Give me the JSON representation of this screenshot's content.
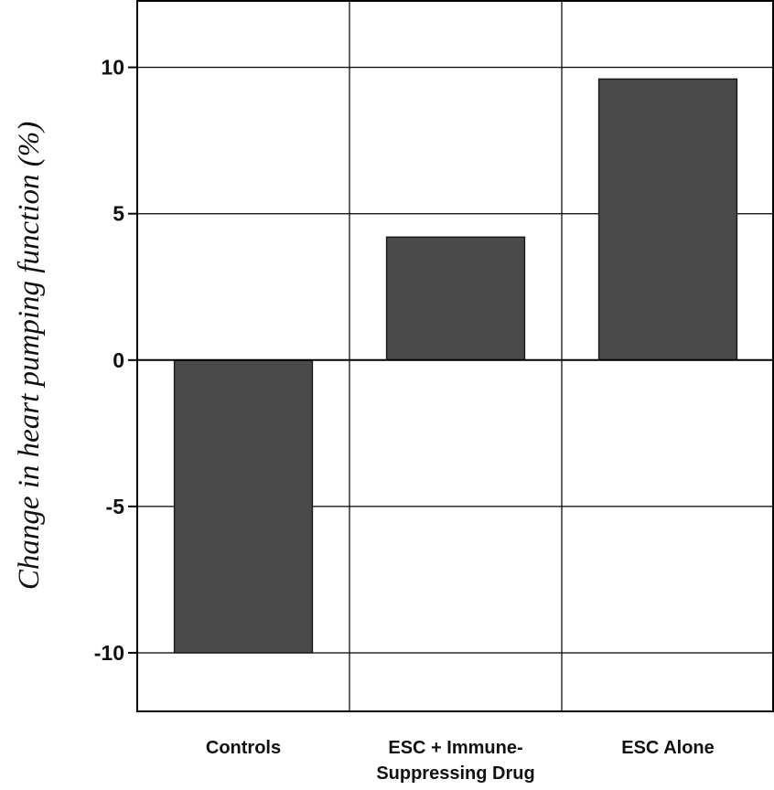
{
  "chart_data": {
    "type": "bar",
    "title": "",
    "xlabel": "",
    "ylabel": "Change in heart pumping function (%)",
    "categories": [
      [
        "Controls"
      ],
      [
        "ESC + Immune-",
        "Suppressing Drug"
      ],
      [
        "ESC Alone"
      ]
    ],
    "values": [
      -10,
      4.2,
      9.6
    ],
    "ylim": [
      -12,
      12.3
    ],
    "yticks": [
      10,
      5,
      0,
      -5,
      -10
    ],
    "ytick_labels": [
      "10",
      "5",
      "0",
      "-5",
      "-10"
    ],
    "grid": true,
    "bar_color": "#4a4a4a"
  }
}
